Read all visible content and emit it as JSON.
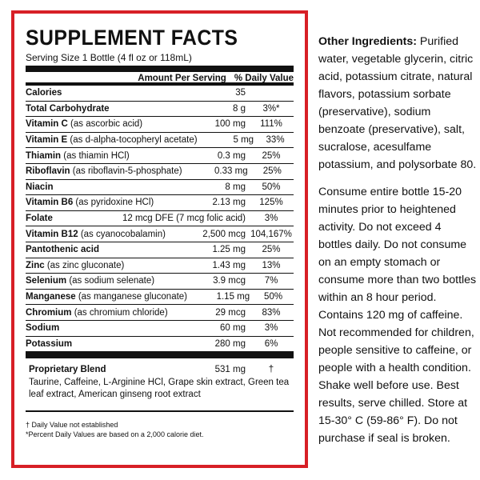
{
  "label": {
    "title": "SUPPLEMENT FACTS",
    "serving": "Serving Size 1 Bottle (4 fl oz or 118mL)",
    "header": {
      "amount": "Amount Per Serving",
      "dv": "% Daily Value"
    },
    "rows": [
      {
        "name": "Calories",
        "detail": "",
        "amount": "35",
        "dv": ""
      },
      {
        "name": "Total Carbohydrate",
        "detail": "",
        "amount": "8 g",
        "dv": "3%*"
      },
      {
        "name": "Vitamin C",
        "detail": " (as ascorbic acid)",
        "amount": "100 mg",
        "dv": "111%"
      },
      {
        "name": "Vitamin E",
        "detail": " (as d-alpha-tocopheryl acetate)",
        "amount": "5 mg",
        "dv": "33%"
      },
      {
        "name": "Thiamin",
        "detail": " (as thiamin HCl)",
        "amount": "0.3 mg",
        "dv": "25%"
      },
      {
        "name": "Riboflavin",
        "detail": " (as riboflavin-5-phosphate)",
        "amount": "0.33 mg",
        "dv": "25%"
      },
      {
        "name": "Niacin",
        "detail": "",
        "amount": "8 mg",
        "dv": "50%"
      },
      {
        "name": "Vitamin B6",
        "detail": " (as pyridoxine HCl)",
        "amount": "2.13 mg",
        "dv": "125%"
      },
      {
        "name": "Folate",
        "detail": "",
        "amount": "12 mcg DFE (7 mcg folic acid)",
        "dv": "3%",
        "wide": true
      },
      {
        "name": "Vitamin B12",
        "detail": " (as cyanocobalamin)",
        "amount": "2,500 mcg",
        "dv": "104,167%"
      },
      {
        "name": "Pantothenic acid",
        "detail": "",
        "amount": "1.25 mg",
        "dv": "25%"
      },
      {
        "name": "Zinc",
        "detail": " (as zinc gluconate)",
        "amount": "1.43 mg",
        "dv": "13%"
      },
      {
        "name": "Selenium",
        "detail": " (as sodium selenate)",
        "amount": "3.9 mcg",
        "dv": "7%"
      },
      {
        "name": "Manganese",
        "detail": " (as manganese gluconate)",
        "amount": "1.15 mg",
        "dv": "50%"
      },
      {
        "name": "Chromium",
        "detail": " (as chromium chloride)",
        "amount": "29 mcg",
        "dv": "83%"
      },
      {
        "name": "Sodium",
        "detail": "",
        "amount": "60 mg",
        "dv": "3%"
      },
      {
        "name": "Potassium",
        "detail": "",
        "amount": "280 mg",
        "dv": "6%"
      }
    ],
    "blend": {
      "name": "Proprietary Blend",
      "amount": "531 mg",
      "dv": "†",
      "ingredients": "Taurine, Caffeine, L-Arginine HCl, Grape skin extract, Green tea leaf extract, American ginseng root extract"
    },
    "footnotes": [
      "† Daily Value not established",
      "*Percent Daily Values are based on a 2,000 calorie diet."
    ]
  },
  "side": {
    "other_heading": "Other Ingredients:",
    "other_text": " Purified water, vegetable glycerin, citric acid, potassium citrate, natural flavors, potassium sorbate (preservative), sodium benzoate (preservative), salt, sucralose, acesulfame potassium, and polysorbate 80.",
    "directions": "Consume entire bottle 15-20 minutes prior to heightened activity. Do not exceed 4 bottles daily. Do not consume on an empty stomach or consume more than two bottles within an 8 hour period. Contains 120 mg of caffeine. Not recommended for children, people sensitive to caffeine, or people with a health condition. Shake well before use. Best results, serve chilled. Store at 15-30° C (59-86° F). Do not purchase if seal is broken."
  },
  "colors": {
    "border": "#d71f26",
    "text": "#111111"
  }
}
